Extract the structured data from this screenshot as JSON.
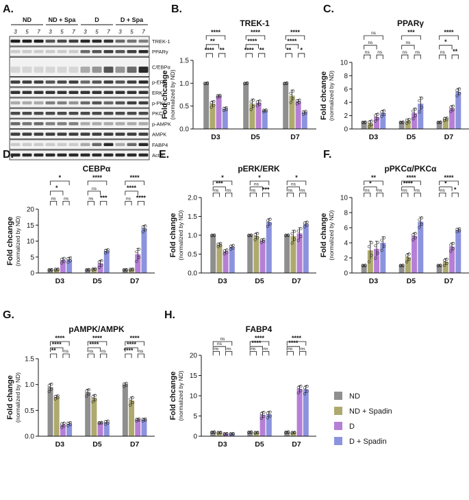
{
  "colors": {
    "nd": "#8f8f8f",
    "nd_spadin": "#aeaa6e",
    "d": "#b67fd6",
    "d_spadin": "#8c93de",
    "blot_bg": "#f2f2f2",
    "band": "#2a2a2a"
  },
  "legend": {
    "items": [
      {
        "label": "ND",
        "color": "#8f8f8f"
      },
      {
        "label": "ND + Spadin",
        "color": "#aeaa6e"
      },
      {
        "label": "D",
        "color": "#b67fd6"
      },
      {
        "label": "D + Spadin",
        "color": "#8c93de"
      }
    ]
  },
  "blot": {
    "panel_letter": "A.",
    "groups": [
      "ND",
      "ND + Spa",
      "D",
      "D + Spa"
    ],
    "days": [
      "3",
      "5",
      "7"
    ],
    "proteins": [
      "TREK-1",
      "PPARγ",
      "C/EBPα",
      "p-ERK",
      "ERK",
      "p-PKCα",
      "PKCα",
      "p-AMPK",
      "AMPK",
      "FABP4",
      "Actin"
    ]
  },
  "chart_data": [
    {
      "letter": "B.",
      "type": "bar",
      "title": "TREK-1",
      "ylabel": "Fold chcange",
      "ysublabel": "(normalized by ND)",
      "categories": [
        "D3",
        "D5",
        "D7"
      ],
      "ylim": [
        0,
        1.5
      ],
      "yticks": [
        0.0,
        0.5,
        1.0,
        1.5
      ],
      "series": [
        {
          "name": "ND",
          "values": [
            1.0,
            1.0,
            1.0
          ],
          "errors": [
            0.01,
            0.01,
            0.01
          ]
        },
        {
          "name": "ND + Spadin",
          "values": [
            0.55,
            0.55,
            0.73
          ],
          "errors": [
            0.06,
            0.1,
            0.12
          ]
        },
        {
          "name": "D",
          "values": [
            0.72,
            0.57,
            0.6
          ],
          "errors": [
            0.02,
            0.05,
            0.04
          ]
        },
        {
          "name": "D + Spadin",
          "values": [
            0.44,
            0.4,
            0.36
          ],
          "errors": [
            0.03,
            0.02,
            0.03
          ]
        }
      ],
      "brackets": [
        {
          "cat": 0,
          "a": 0,
          "b": 3,
          "label": "****"
        },
        {
          "cat": 0,
          "a": 0,
          "b": 2,
          "label": "**"
        },
        {
          "cat": 0,
          "a": 0,
          "b": 1,
          "label": "****"
        },
        {
          "cat": 0,
          "a": 2,
          "b": 3,
          "label": "**"
        },
        {
          "cat": 1,
          "a": 0,
          "b": 3,
          "label": "****"
        },
        {
          "cat": 1,
          "a": 0,
          "b": 2,
          "label": "****"
        },
        {
          "cat": 1,
          "a": 0,
          "b": 1,
          "label": "****"
        },
        {
          "cat": 1,
          "a": 2,
          "b": 3,
          "label": "**"
        },
        {
          "cat": 2,
          "a": 0,
          "b": 3,
          "label": "****"
        },
        {
          "cat": 2,
          "a": 0,
          "b": 2,
          "label": "****"
        },
        {
          "cat": 2,
          "a": 0,
          "b": 1,
          "label": "**"
        },
        {
          "cat": 2,
          "a": 2,
          "b": 3,
          "label": "*"
        }
      ]
    },
    {
      "letter": "C.",
      "type": "bar",
      "title": "PPARγ",
      "ylabel": "Fold chcange",
      "ysublabel": "(normalized by ND)",
      "categories": [
        "D3",
        "D5",
        "D7"
      ],
      "ylim": [
        0,
        10
      ],
      "yticks": [
        0,
        2,
        4,
        6,
        8,
        10
      ],
      "series": [
        {
          "name": "ND",
          "values": [
            1.0,
            1.0,
            1.0
          ],
          "errors": [
            0.05,
            0.05,
            0.05
          ]
        },
        {
          "name": "ND + Spadin",
          "values": [
            0.85,
            1.2,
            1.5
          ],
          "errors": [
            0.4,
            0.3,
            0.2
          ]
        },
        {
          "name": "D",
          "values": [
            1.8,
            2.4,
            3.1
          ],
          "errors": [
            0.5,
            0.7,
            0.4
          ]
        },
        {
          "name": "D + Spadin",
          "values": [
            2.4,
            3.8,
            5.6
          ],
          "errors": [
            0.4,
            1.0,
            0.5
          ]
        }
      ],
      "brackets": [
        {
          "cat": 0,
          "a": 0,
          "b": 3,
          "label": "ns"
        },
        {
          "cat": 0,
          "a": 0,
          "b": 2,
          "label": "ns"
        },
        {
          "cat": 0,
          "a": 0,
          "b": 1,
          "label": "ns"
        },
        {
          "cat": 0,
          "a": 2,
          "b": 3,
          "label": "ns"
        },
        {
          "cat": 1,
          "a": 0,
          "b": 3,
          "label": "***"
        },
        {
          "cat": 1,
          "a": 0,
          "b": 2,
          "label": "ns"
        },
        {
          "cat": 1,
          "a": 0,
          "b": 1,
          "label": "ns"
        },
        {
          "cat": 1,
          "a": 2,
          "b": 3,
          "label": "ns"
        },
        {
          "cat": 2,
          "a": 0,
          "b": 3,
          "label": "****"
        },
        {
          "cat": 2,
          "a": 0,
          "b": 2,
          "label": "*"
        },
        {
          "cat": 2,
          "a": 0,
          "b": 1,
          "label": "ns"
        },
        {
          "cat": 2,
          "a": 2,
          "b": 3,
          "label": "**"
        }
      ]
    },
    {
      "letter": "D.",
      "type": "bar",
      "title": "CEBPα",
      "ylabel": "Fold chcange",
      "ysublabel": "(normalized by ND)",
      "categories": [
        "D3",
        "D5",
        "D7"
      ],
      "ylim": [
        0,
        20
      ],
      "yticks": [
        0,
        5,
        10,
        15,
        20
      ],
      "series": [
        {
          "name": "ND",
          "values": [
            1.0,
            1.0,
            1.0
          ],
          "errors": [
            0.1,
            0.1,
            0.1
          ]
        },
        {
          "name": "ND + Spadin",
          "values": [
            1.1,
            1.2,
            1.1
          ],
          "errors": [
            0.2,
            0.2,
            0.2
          ]
        },
        {
          "name": "D",
          "values": [
            4.0,
            3.0,
            5.9
          ],
          "errors": [
            0.7,
            1.0,
            1.8
          ]
        },
        {
          "name": "D + Spadin",
          "values": [
            4.2,
            6.9,
            14.0
          ],
          "errors": [
            0.7,
            0.5,
            0.9
          ]
        }
      ],
      "brackets": [
        {
          "cat": 0,
          "a": 0,
          "b": 3,
          "label": "*"
        },
        {
          "cat": 0,
          "a": 0,
          "b": 2,
          "label": "*"
        },
        {
          "cat": 0,
          "a": 0,
          "b": 1,
          "label": "ns"
        },
        {
          "cat": 0,
          "a": 2,
          "b": 3,
          "label": "ns"
        },
        {
          "cat": 1,
          "a": 0,
          "b": 3,
          "label": "****"
        },
        {
          "cat": 1,
          "a": 0,
          "b": 2,
          "label": "ns"
        },
        {
          "cat": 1,
          "a": 0,
          "b": 1,
          "label": "ns"
        },
        {
          "cat": 1,
          "a": 2,
          "b": 3,
          "label": "***"
        },
        {
          "cat": 2,
          "a": 0,
          "b": 3,
          "label": "****"
        },
        {
          "cat": 2,
          "a": 0,
          "b": 2,
          "label": "****"
        },
        {
          "cat": 2,
          "a": 0,
          "b": 1,
          "label": "ns"
        },
        {
          "cat": 2,
          "a": 2,
          "b": 3,
          "label": "****"
        }
      ]
    },
    {
      "letter": "E.",
      "type": "bar",
      "title": "pERK/ERK",
      "ylabel": "Fold change",
      "ysublabel": "(normalized by ND)",
      "categories": [
        "D3",
        "D5",
        "D7"
      ],
      "ylim": [
        0,
        2.0
      ],
      "yticks": [
        0.0,
        0.5,
        1.0,
        1.5,
        2.0
      ],
      "series": [
        {
          "name": "ND",
          "values": [
            1.0,
            1.0,
            1.0
          ],
          "errors": [
            0.01,
            0.01,
            0.01
          ]
        },
        {
          "name": "ND + Spadin",
          "values": [
            0.75,
            0.98,
            0.98
          ],
          "errors": [
            0.04,
            0.08,
            0.15
          ]
        },
        {
          "name": "D",
          "values": [
            0.57,
            0.86,
            1.05
          ],
          "errors": [
            0.05,
            0.04,
            0.15
          ]
        },
        {
          "name": "D + Spadin",
          "values": [
            0.69,
            1.35,
            1.3
          ],
          "errors": [
            0.05,
            0.09,
            0.06
          ]
        }
      ],
      "brackets": [
        {
          "cat": 0,
          "a": 0,
          "b": 3,
          "label": "*"
        },
        {
          "cat": 0,
          "a": 0,
          "b": 2,
          "label": "***"
        },
        {
          "cat": 0,
          "a": 0,
          "b": 1,
          "label": "ns"
        },
        {
          "cat": 0,
          "a": 2,
          "b": 3,
          "label": "ns"
        },
        {
          "cat": 1,
          "a": 0,
          "b": 3,
          "label": "*"
        },
        {
          "cat": 1,
          "a": 0,
          "b": 2,
          "label": "ns"
        },
        {
          "cat": 1,
          "a": 0,
          "b": 1,
          "label": "ns"
        },
        {
          "cat": 1,
          "a": 2,
          "b": 3,
          "label": "***"
        },
        {
          "cat": 2,
          "a": 0,
          "b": 3,
          "label": "*"
        },
        {
          "cat": 2,
          "a": 0,
          "b": 2,
          "label": "ns"
        },
        {
          "cat": 2,
          "a": 0,
          "b": 1,
          "label": "ns"
        },
        {
          "cat": 2,
          "a": 2,
          "b": 3,
          "label": "ns"
        }
      ]
    },
    {
      "letter": "F.",
      "type": "bar",
      "title": "pPKCα/PKCα",
      "ylabel": "Fold change",
      "ysublabel": "(normalized by ND)",
      "categories": [
        "D3",
        "D5",
        "D7"
      ],
      "ylim": [
        0,
        10
      ],
      "yticks": [
        0,
        2,
        4,
        6,
        8,
        10
      ],
      "series": [
        {
          "name": "ND",
          "values": [
            1.0,
            1.0,
            1.0
          ],
          "errors": [
            0.05,
            0.05,
            0.05
          ]
        },
        {
          "name": "ND + Spadin",
          "values": [
            3.0,
            2.1,
            1.5
          ],
          "errors": [
            1.2,
            0.5,
            0.4
          ]
        },
        {
          "name": "D",
          "values": [
            3.2,
            4.9,
            3.5
          ],
          "errors": [
            1.0,
            0.4,
            0.5
          ]
        },
        {
          "name": "D + Spadin",
          "values": [
            4.0,
            6.8,
            5.7
          ],
          "errors": [
            0.8,
            0.6,
            0.2
          ]
        }
      ],
      "brackets": [
        {
          "cat": 0,
          "a": 0,
          "b": 3,
          "label": "**"
        },
        {
          "cat": 0,
          "a": 0,
          "b": 2,
          "label": "*"
        },
        {
          "cat": 0,
          "a": 0,
          "b": 1,
          "label": "ns"
        },
        {
          "cat": 0,
          "a": 2,
          "b": 3,
          "label": "ns"
        },
        {
          "cat": 1,
          "a": 0,
          "b": 3,
          "label": "****"
        },
        {
          "cat": 1,
          "a": 0,
          "b": 2,
          "label": "****"
        },
        {
          "cat": 1,
          "a": 0,
          "b": 1,
          "label": "ns"
        },
        {
          "cat": 1,
          "a": 2,
          "b": 3,
          "label": "ns"
        },
        {
          "cat": 2,
          "a": 0,
          "b": 3,
          "label": "****"
        },
        {
          "cat": 2,
          "a": 0,
          "b": 2,
          "label": "*"
        },
        {
          "cat": 2,
          "a": 0,
          "b": 1,
          "label": "ns"
        },
        {
          "cat": 2,
          "a": 2,
          "b": 3,
          "label": "*"
        }
      ]
    },
    {
      "letter": "G.",
      "type": "bar",
      "title": "pAMPK/AMPK",
      "ylabel": "Fold change",
      "ysublabel": "(normalized by ND)",
      "categories": [
        "D3",
        "D5",
        "D7"
      ],
      "ylim": [
        0,
        1.5
      ],
      "yticks": [
        0.0,
        0.5,
        1.0,
        1.5
      ],
      "series": [
        {
          "name": "ND",
          "values": [
            0.95,
            0.85,
            1.0
          ],
          "errors": [
            0.07,
            0.06,
            0.03
          ]
        },
        {
          "name": "ND + Spadin",
          "values": [
            0.76,
            0.74,
            0.69
          ],
          "errors": [
            0.03,
            0.06,
            0.07
          ]
        },
        {
          "name": "D",
          "values": [
            0.22,
            0.26,
            0.32
          ],
          "errors": [
            0.04,
            0.01,
            0.02
          ]
        },
        {
          "name": "D + Spadin",
          "values": [
            0.24,
            0.27,
            0.32
          ],
          "errors": [
            0.03,
            0.03,
            0.02
          ]
        }
      ],
      "brackets": [
        {
          "cat": 0,
          "a": 0,
          "b": 3,
          "label": "****"
        },
        {
          "cat": 0,
          "a": 0,
          "b": 2,
          "label": "****"
        },
        {
          "cat": 0,
          "a": 0,
          "b": 1,
          "label": "**"
        },
        {
          "cat": 0,
          "a": 2,
          "b": 3,
          "label": "ns"
        },
        {
          "cat": 1,
          "a": 0,
          "b": 3,
          "label": "****"
        },
        {
          "cat": 1,
          "a": 0,
          "b": 2,
          "label": "****"
        },
        {
          "cat": 1,
          "a": 0,
          "b": 1,
          "label": "ns"
        },
        {
          "cat": 1,
          "a": 2,
          "b": 3,
          "label": "ns"
        },
        {
          "cat": 2,
          "a": 0,
          "b": 3,
          "label": "****"
        },
        {
          "cat": 2,
          "a": 0,
          "b": 2,
          "label": "****"
        },
        {
          "cat": 2,
          "a": 0,
          "b": 1,
          "label": "****"
        },
        {
          "cat": 2,
          "a": 2,
          "b": 3,
          "label": "ns"
        }
      ]
    },
    {
      "letter": "H.",
      "type": "bar",
      "title": "FABP4",
      "ylabel": "Fold chcange",
      "ysublabel": "(normalized by ND)",
      "categories": [
        "D3",
        "D5",
        "D7"
      ],
      "ylim": [
        0,
        20
      ],
      "yticks": [
        0,
        5,
        10,
        15,
        20
      ],
      "series": [
        {
          "name": "ND",
          "values": [
            1.0,
            1.0,
            1.0
          ],
          "errors": [
            0.1,
            0.1,
            0.1
          ]
        },
        {
          "name": "ND + Spadin",
          "values": [
            0.9,
            0.9,
            0.9
          ],
          "errors": [
            0.1,
            0.1,
            0.1
          ]
        },
        {
          "name": "D",
          "values": [
            0.6,
            5.3,
            11.7
          ],
          "errors": [
            0.1,
            0.7,
            0.8
          ]
        },
        {
          "name": "D + Spadin",
          "values": [
            0.6,
            5.4,
            11.6
          ],
          "errors": [
            0.1,
            0.7,
            0.9
          ]
        }
      ],
      "brackets": [
        {
          "cat": 0,
          "a": 0,
          "b": 3,
          "label": "ns"
        },
        {
          "cat": 0,
          "a": 0,
          "b": 2,
          "label": "ns"
        },
        {
          "cat": 0,
          "a": 0,
          "b": 1,
          "label": "ns"
        },
        {
          "cat": 0,
          "a": 2,
          "b": 3,
          "label": "ns"
        },
        {
          "cat": 1,
          "a": 0,
          "b": 3,
          "label": "****"
        },
        {
          "cat": 1,
          "a": 0,
          "b": 2,
          "label": "****"
        },
        {
          "cat": 1,
          "a": 0,
          "b": 1,
          "label": "ns"
        },
        {
          "cat": 1,
          "a": 2,
          "b": 3,
          "label": "ns"
        },
        {
          "cat": 2,
          "a": 0,
          "b": 3,
          "label": "****"
        },
        {
          "cat": 2,
          "a": 0,
          "b": 2,
          "label": "****"
        },
        {
          "cat": 2,
          "a": 0,
          "b": 1,
          "label": "ns"
        },
        {
          "cat": 2,
          "a": 2,
          "b": 3,
          "label": "ns"
        }
      ]
    }
  ]
}
